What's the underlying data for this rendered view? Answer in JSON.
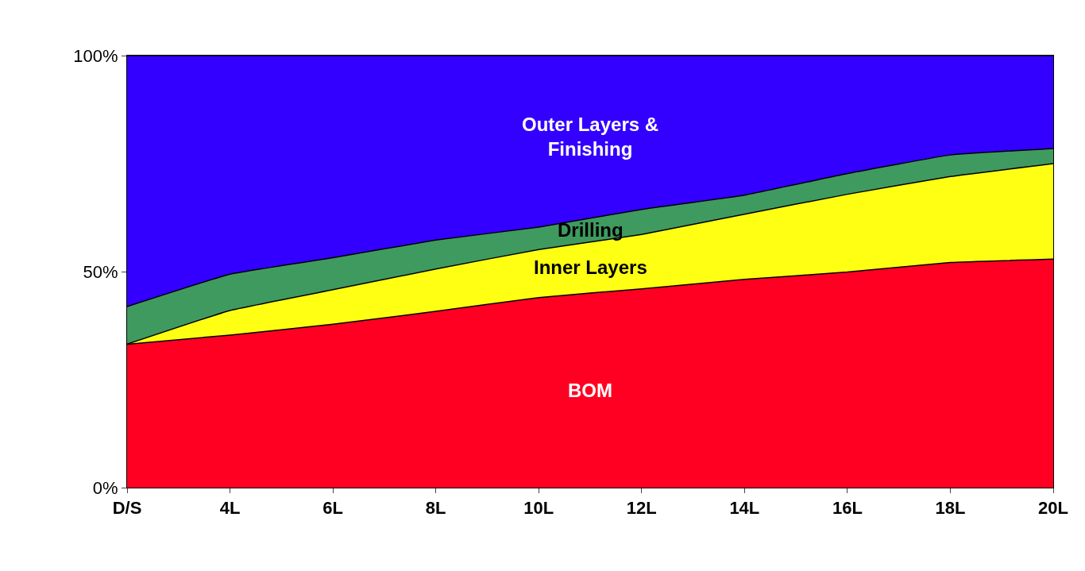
{
  "chart_data": {
    "type": "area",
    "stacked": true,
    "categories": [
      "D/S",
      "4L",
      "6L",
      "8L",
      "10L",
      "12L",
      "14L",
      "16L",
      "18L",
      "20L"
    ],
    "series": [
      {
        "name": "BOM",
        "color": "#ff0022",
        "values": [
          33.2,
          35.3,
          37.8,
          40.8,
          44,
          46,
          48.2,
          49.9,
          52.1,
          52.9
        ]
      },
      {
        "name": "Inner Layers",
        "color": "#ffff14",
        "values": [
          0,
          5.7,
          8,
          9.8,
          11.1,
          12.6,
          15.1,
          18,
          19.9,
          22.1
        ]
      },
      {
        "name": "Drilling",
        "color": "#3f9a60",
        "values": [
          8.7,
          8.4,
          7.4,
          6.7,
          5.2,
          5.8,
          4.4,
          4.8,
          5,
          3.5
        ]
      },
      {
        "name": "Outer Layers & Finishing",
        "color": "#3300ff",
        "values": [
          58.1,
          50.6,
          46.8,
          42.7,
          39.7,
          35.6,
          32.3,
          27.3,
          23,
          21.5
        ]
      }
    ],
    "ylim": [
      0,
      100
    ],
    "yticks": [
      {
        "value": 0,
        "label": "0%"
      },
      {
        "value": 50,
        "label": "50%"
      },
      {
        "value": 100,
        "label": "100%"
      }
    ],
    "legend": false
  }
}
